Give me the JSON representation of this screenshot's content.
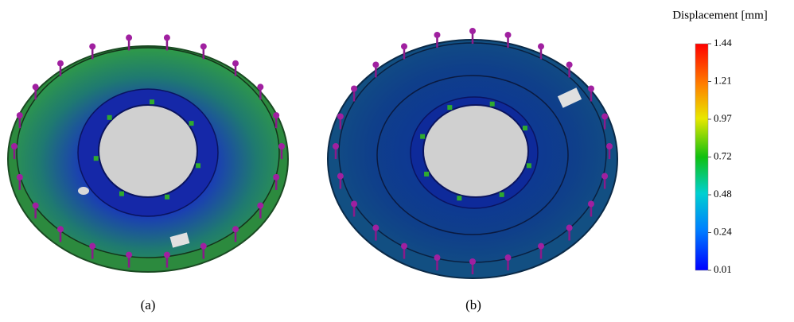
{
  "colorbar": {
    "title": "Displacement [mm]",
    "ticks": [
      "1.44",
      "1.21",
      "0.97",
      "0.72",
      "0.48",
      "0.24",
      "0.01"
    ]
  },
  "panels": [
    {
      "label": "(a)"
    },
    {
      "label": "(b)"
    }
  ]
}
